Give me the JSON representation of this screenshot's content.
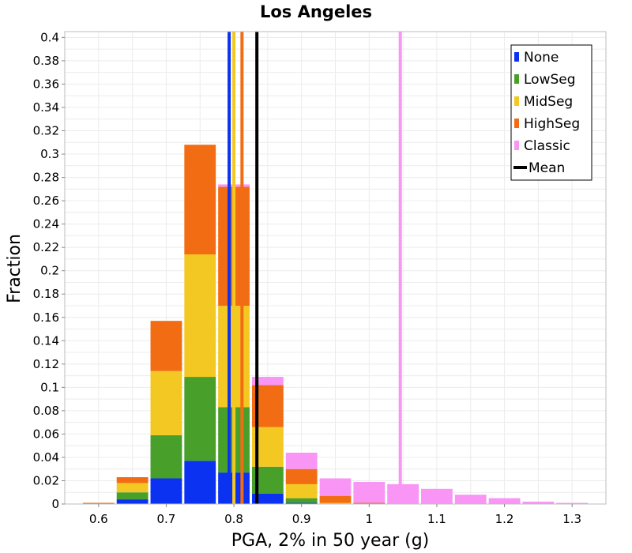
{
  "chart_data": {
    "type": "bar",
    "stacked": true,
    "title": "Los Angeles",
    "xlabel": "PGA, 2% in 50 year (g)",
    "ylabel": "Fraction",
    "xlim": [
      0.55,
      1.35
    ],
    "ylim": [
      0,
      0.405
    ],
    "grid": true,
    "legend_position": "top-right",
    "bin_width": 0.05,
    "x_ticks": [
      "0.6",
      "0.7",
      "0.8",
      "0.9",
      "1",
      "1.1",
      "1.2",
      "1.3"
    ],
    "y_ticks": [
      "0",
      "0.02",
      "0.04",
      "0.06",
      "0.08",
      "0.1",
      "0.12",
      "0.14",
      "0.16",
      "0.18",
      "0.2",
      "0.22",
      "0.24",
      "0.26",
      "0.28",
      "0.3",
      "0.32",
      "0.34",
      "0.36",
      "0.38",
      "0.4"
    ],
    "bin_centers": [
      0.6,
      0.65,
      0.7,
      0.75,
      0.8,
      0.85,
      0.9,
      0.95,
      1.0,
      1.05,
      1.1,
      1.15,
      1.2,
      1.25,
      1.3
    ],
    "series": [
      {
        "name": "None",
        "color": "#0a32f0",
        "values": [
          0,
          0.004,
          0.022,
          0.037,
          0.027,
          0.009,
          0.001,
          0,
          0,
          0,
          0,
          0,
          0,
          0,
          0
        ]
      },
      {
        "name": "LowSeg",
        "color": "#48a02a",
        "values": [
          0,
          0.006,
          0.037,
          0.072,
          0.056,
          0.023,
          0.004,
          0,
          0,
          0,
          0,
          0,
          0,
          0,
          0
        ]
      },
      {
        "name": "MidSeg",
        "color": "#f3c822",
        "values": [
          0,
          0.008,
          0.055,
          0.105,
          0.087,
          0.034,
          0.012,
          0.001,
          0,
          0,
          0,
          0,
          0,
          0,
          0
        ]
      },
      {
        "name": "HighSeg",
        "color": "#f26c14",
        "values": [
          0.001,
          0.005,
          0.043,
          0.094,
          0.102,
          0.036,
          0.013,
          0.006,
          0.001,
          0,
          0,
          0,
          0,
          0,
          0
        ]
      },
      {
        "name": "Classic",
        "color": "#f895f5",
        "values": [
          0,
          0,
          0,
          0,
          0.002,
          0.007,
          0.014,
          0.015,
          0.018,
          0.017,
          0.013,
          0.008,
          0.005,
          0.002,
          0.001
        ]
      }
    ],
    "vertical_lines": [
      {
        "series": "None",
        "color": "#0a32f0",
        "x": 0.793
      },
      {
        "series": "MidSeg",
        "color": "#f3c822",
        "x": 0.8
      },
      {
        "series": "HighSeg",
        "color": "#f26c14",
        "x": 0.812
      },
      {
        "series": "Mean",
        "color": "#000000",
        "x": 0.834
      },
      {
        "series": "Classic",
        "color": "#f895f5",
        "x": 1.046
      }
    ],
    "legend": [
      {
        "label": "None",
        "color": "#0a32f0",
        "kind": "box"
      },
      {
        "label": "LowSeg",
        "color": "#48a02a",
        "kind": "box"
      },
      {
        "label": "MidSeg",
        "color": "#f3c822",
        "kind": "box"
      },
      {
        "label": "HighSeg",
        "color": "#f26c14",
        "kind": "box"
      },
      {
        "label": "Classic",
        "color": "#f895f5",
        "kind": "box"
      },
      {
        "label": "Mean",
        "color": "#000000",
        "kind": "line"
      }
    ]
  }
}
